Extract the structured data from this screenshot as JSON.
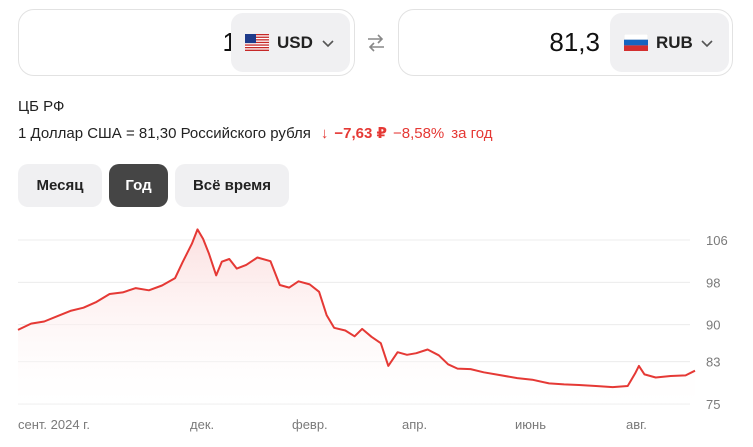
{
  "converter": {
    "from": {
      "amount": "1",
      "currency": "USD",
      "flag_icon": "us-flag-icon"
    },
    "to": {
      "amount": "81,3",
      "currency": "RUB",
      "flag_icon": "ru-flag-icon"
    },
    "swap_icon": "swap-arrows-icon"
  },
  "info": {
    "source": "ЦБ РФ",
    "rate_text": "1 Доллар США = 81,30 Российского рубля",
    "change_arrow": "↓",
    "change_abs": "−7,63 ₽",
    "change_pct": "−8,58%",
    "change_period": "за год"
  },
  "periods": [
    {
      "label": "Месяц",
      "active": false
    },
    {
      "label": "Год",
      "active": true
    },
    {
      "label": "Всё время",
      "active": false
    }
  ],
  "colors": {
    "line": "#e53935",
    "area": "#fdeaea",
    "active_tab": "#454545",
    "tab": "#f0f0f2"
  },
  "chart_data": {
    "type": "area",
    "x_tick_labels": [
      "сент. 2024 г.",
      "дек.",
      "февр.",
      "апр.",
      "июнь",
      "авг."
    ],
    "y_ticks": [
      106,
      98,
      90,
      83,
      75
    ],
    "ylim": [
      75,
      106
    ],
    "points": [
      [
        "2024-08-26",
        89.0
      ],
      [
        "2024-09-02",
        90.2
      ],
      [
        "2024-09-09",
        90.6
      ],
      [
        "2024-09-16",
        91.6
      ],
      [
        "2024-09-23",
        92.6
      ],
      [
        "2024-09-30",
        93.2
      ],
      [
        "2024-10-07",
        94.3
      ],
      [
        "2024-10-14",
        95.8
      ],
      [
        "2024-10-21",
        96.1
      ],
      [
        "2024-10-28",
        96.9
      ],
      [
        "2024-11-04",
        96.5
      ],
      [
        "2024-11-11",
        97.4
      ],
      [
        "2024-11-18",
        98.8
      ],
      [
        "2024-11-22",
        101.8
      ],
      [
        "2024-11-27",
        105.3
      ],
      [
        "2024-11-30",
        108.0
      ],
      [
        "2024-12-03",
        106.2
      ],
      [
        "2024-12-06",
        103.5
      ],
      [
        "2024-12-10",
        99.3
      ],
      [
        "2024-12-13",
        101.9
      ],
      [
        "2024-12-17",
        102.4
      ],
      [
        "2024-12-21",
        100.6
      ],
      [
        "2024-12-26",
        101.3
      ],
      [
        "2025-01-01",
        102.7
      ],
      [
        "2025-01-08",
        102.0
      ],
      [
        "2025-01-13",
        97.5
      ],
      [
        "2025-01-18",
        97.0
      ],
      [
        "2025-01-23",
        98.2
      ],
      [
        "2025-01-29",
        97.6
      ],
      [
        "2025-02-03",
        96.2
      ],
      [
        "2025-02-07",
        91.8
      ],
      [
        "2025-02-11",
        89.4
      ],
      [
        "2025-02-17",
        88.9
      ],
      [
        "2025-02-22",
        87.8
      ],
      [
        "2025-02-26",
        89.2
      ],
      [
        "2025-03-03",
        87.7
      ],
      [
        "2025-03-08",
        86.5
      ],
      [
        "2025-03-12",
        82.2
      ],
      [
        "2025-03-17",
        84.8
      ],
      [
        "2025-03-22",
        84.3
      ],
      [
        "2025-03-27",
        84.6
      ],
      [
        "2025-04-02",
        85.3
      ],
      [
        "2025-04-08",
        84.2
      ],
      [
        "2025-04-13",
        82.5
      ],
      [
        "2025-04-18",
        81.7
      ],
      [
        "2025-04-25",
        81.6
      ],
      [
        "2025-05-02",
        81.0
      ],
      [
        "2025-05-10",
        80.5
      ],
      [
        "2025-05-20",
        79.9
      ],
      [
        "2025-05-28",
        79.6
      ],
      [
        "2025-06-06",
        78.9
      ],
      [
        "2025-06-14",
        78.7
      ],
      [
        "2025-06-22",
        78.6
      ],
      [
        "2025-07-01",
        78.4
      ],
      [
        "2025-07-10",
        78.2
      ],
      [
        "2025-07-18",
        78.4
      ],
      [
        "2025-07-22",
        80.8
      ],
      [
        "2025-07-24",
        82.2
      ],
      [
        "2025-07-27",
        80.6
      ],
      [
        "2025-08-02",
        80.0
      ],
      [
        "2025-08-10",
        80.3
      ],
      [
        "2025-08-18",
        80.4
      ],
      [
        "2025-08-23",
        81.3
      ]
    ]
  }
}
